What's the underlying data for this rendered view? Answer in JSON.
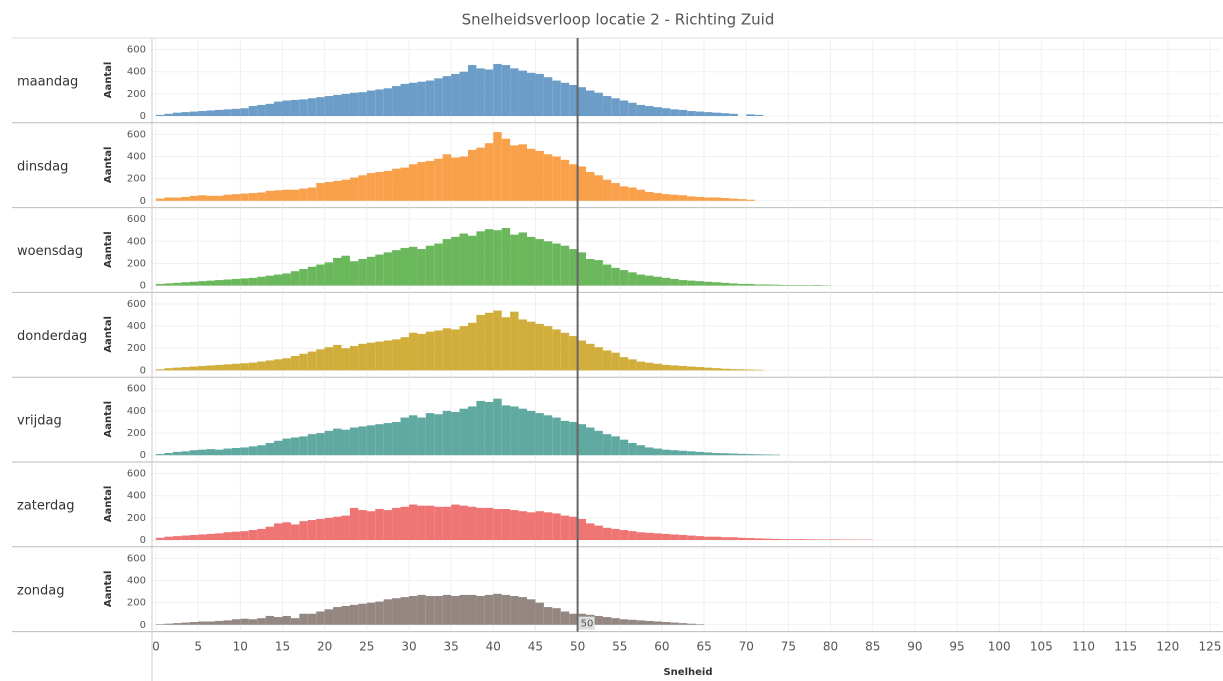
{
  "chart_data": {
    "type": "histogram",
    "title": "Snelheidsverloop locatie 2 - Richting Zuid",
    "xlabel": "Snelheid",
    "ylabel": "Aantal",
    "xlim": [
      0,
      125
    ],
    "xticks": [
      0,
      5,
      10,
      15,
      20,
      25,
      30,
      35,
      40,
      45,
      50,
      55,
      60,
      65,
      70,
      75,
      80,
      85,
      90,
      95,
      100,
      105,
      110,
      115,
      120,
      125
    ],
    "ylim": [
      0,
      650
    ],
    "yticks": [
      0,
      200,
      400,
      600
    ],
    "grid": true,
    "reference_line": 50,
    "bins": [
      0,
      1,
      2,
      3,
      4,
      5,
      6,
      7,
      8,
      9,
      10,
      11,
      12,
      13,
      14,
      15,
      16,
      17,
      18,
      19,
      20,
      21,
      22,
      23,
      24,
      25,
      26,
      27,
      28,
      29,
      30,
      31,
      32,
      33,
      34,
      35,
      36,
      37,
      38,
      39,
      40,
      41,
      42,
      43,
      44,
      45,
      46,
      47,
      48,
      49,
      50,
      51,
      52,
      53,
      54,
      55,
      56,
      57,
      58,
      59,
      60,
      61,
      62,
      63,
      64,
      65,
      66,
      67,
      68,
      69,
      70,
      71,
      72,
      73,
      74,
      75,
      76,
      77,
      78,
      79,
      80,
      81,
      82,
      83,
      84,
      85
    ],
    "series": [
      {
        "name": "maandag",
        "color": "#6b9dc8",
        "values": [
          10,
          20,
          30,
          35,
          40,
          45,
          50,
          55,
          60,
          65,
          70,
          90,
          100,
          110,
          130,
          140,
          145,
          150,
          160,
          170,
          180,
          190,
          200,
          210,
          215,
          230,
          240,
          250,
          270,
          290,
          300,
          310,
          320,
          340,
          360,
          380,
          400,
          460,
          430,
          420,
          470,
          460,
          430,
          410,
          390,
          380,
          350,
          320,
          300,
          280,
          260,
          230,
          210,
          180,
          160,
          140,
          120,
          100,
          90,
          80,
          70,
          60,
          55,
          45,
          40,
          35,
          30,
          25,
          20,
          0,
          15,
          10,
          0,
          0,
          0,
          0,
          0,
          0,
          0,
          0,
          0,
          0,
          0,
          0,
          0
        ]
      },
      {
        "name": "dinsdag",
        "color": "#f8a04a",
        "values": [
          20,
          30,
          30,
          35,
          45,
          50,
          45,
          45,
          55,
          60,
          65,
          70,
          75,
          90,
          95,
          100,
          100,
          110,
          120,
          160,
          170,
          180,
          190,
          210,
          230,
          250,
          260,
          270,
          290,
          300,
          330,
          350,
          360,
          380,
          420,
          390,
          400,
          460,
          480,
          520,
          620,
          560,
          500,
          510,
          470,
          450,
          420,
          400,
          370,
          330,
          310,
          260,
          230,
          190,
          160,
          130,
          120,
          100,
          80,
          70,
          60,
          55,
          50,
          40,
          35,
          30,
          30,
          25,
          20,
          15,
          10,
          0,
          0,
          0,
          0,
          0,
          0,
          0,
          0,
          0,
          0,
          0,
          0,
          0,
          0
        ]
      },
      {
        "name": "woensdag",
        "color": "#6bb85c",
        "values": [
          15,
          20,
          25,
          30,
          35,
          40,
          45,
          50,
          55,
          60,
          65,
          70,
          80,
          90,
          100,
          110,
          130,
          150,
          170,
          190,
          210,
          250,
          270,
          220,
          240,
          260,
          280,
          300,
          320,
          340,
          350,
          330,
          360,
          380,
          420,
          440,
          470,
          450,
          490,
          510,
          500,
          520,
          460,
          480,
          440,
          420,
          400,
          380,
          360,
          330,
          300,
          240,
          230,
          190,
          160,
          140,
          120,
          100,
          90,
          80,
          70,
          60,
          50,
          45,
          40,
          35,
          30,
          25,
          20,
          15,
          15,
          10,
          10,
          8,
          6,
          5,
          5,
          4,
          6,
          3,
          0,
          0,
          0,
          0,
          0
        ]
      },
      {
        "name": "donderdag",
        "color": "#d1ae3c",
        "values": [
          10,
          20,
          25,
          30,
          35,
          40,
          45,
          50,
          55,
          60,
          65,
          70,
          80,
          90,
          100,
          110,
          130,
          150,
          170,
          190,
          210,
          230,
          200,
          220,
          240,
          250,
          260,
          270,
          280,
          300,
          340,
          330,
          350,
          360,
          380,
          370,
          400,
          430,
          500,
          520,
          540,
          480,
          530,
          460,
          440,
          420,
          400,
          370,
          340,
          310,
          270,
          240,
          210,
          180,
          160,
          120,
          100,
          80,
          70,
          60,
          50,
          45,
          40,
          35,
          30,
          25,
          20,
          15,
          12,
          10,
          8,
          5,
          0,
          0,
          0,
          0,
          0,
          0,
          0,
          0,
          0,
          0,
          0,
          0,
          0
        ]
      },
      {
        "name": "vrijdag",
        "color": "#5fa9a0",
        "values": [
          10,
          20,
          30,
          35,
          45,
          50,
          55,
          50,
          60,
          65,
          70,
          80,
          90,
          110,
          130,
          150,
          160,
          170,
          190,
          200,
          220,
          240,
          230,
          250,
          260,
          270,
          280,
          290,
          300,
          340,
          360,
          340,
          380,
          370,
          400,
          390,
          420,
          440,
          490,
          480,
          510,
          450,
          440,
          420,
          400,
          380,
          360,
          340,
          310,
          300,
          280,
          250,
          220,
          190,
          170,
          140,
          110,
          90,
          70,
          60,
          50,
          45,
          40,
          35,
          30,
          25,
          20,
          18,
          15,
          12,
          10,
          8,
          6,
          5,
          0,
          0,
          0,
          0,
          0,
          0,
          0,
          0,
          0,
          0,
          0
        ]
      },
      {
        "name": "zaterdag",
        "color": "#ef7474",
        "values": [
          20,
          30,
          35,
          40,
          45,
          50,
          55,
          60,
          70,
          75,
          80,
          90,
          100,
          120,
          150,
          160,
          140,
          170,
          180,
          190,
          200,
          210,
          220,
          290,
          270,
          260,
          280,
          270,
          290,
          300,
          320,
          310,
          310,
          300,
          300,
          320,
          310,
          300,
          290,
          290,
          280,
          280,
          270,
          260,
          250,
          260,
          250,
          240,
          220,
          210,
          190,
          150,
          130,
          110,
          100,
          90,
          80,
          70,
          65,
          60,
          55,
          50,
          45,
          40,
          35,
          30,
          30,
          25,
          25,
          20,
          18,
          15,
          12,
          10,
          8,
          7,
          8,
          6,
          6,
          5,
          5,
          4,
          4,
          3,
          3
        ]
      },
      {
        "name": "zondag",
        "color": "#948782",
        "values": [
          5,
          10,
          15,
          20,
          25,
          30,
          30,
          35,
          40,
          50,
          55,
          50,
          60,
          80,
          70,
          80,
          60,
          100,
          100,
          120,
          140,
          160,
          170,
          180,
          190,
          200,
          210,
          230,
          240,
          250,
          260,
          270,
          260,
          260,
          270,
          260,
          270,
          270,
          260,
          270,
          280,
          270,
          260,
          250,
          230,
          200,
          160,
          150,
          120,
          100,
          100,
          90,
          80,
          70,
          60,
          50,
          45,
          40,
          35,
          30,
          25,
          20,
          15,
          10,
          5,
          0,
          0,
          0,
          0,
          0,
          0,
          0,
          0,
          0,
          0,
          0,
          0,
          0,
          0,
          0,
          0,
          0,
          0,
          0,
          0
        ]
      }
    ]
  }
}
